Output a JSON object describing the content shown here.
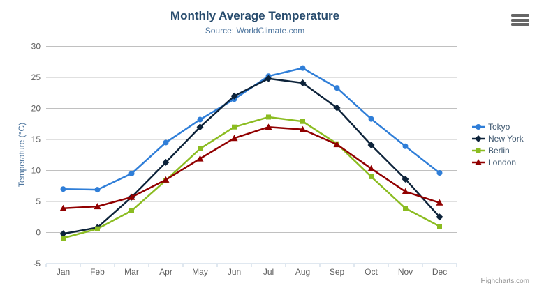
{
  "credits": {
    "label": "Highcharts.com"
  },
  "chart_data": {
    "type": "line",
    "title": "Monthly Average Temperature",
    "subtitle": "Source: WorldClimate.com",
    "xlabel": "",
    "ylabel": "Temperature (°C)",
    "categories": [
      "Jan",
      "Feb",
      "Mar",
      "Apr",
      "May",
      "Jun",
      "Jul",
      "Aug",
      "Sep",
      "Oct",
      "Nov",
      "Dec"
    ],
    "series": [
      {
        "name": "Tokyo",
        "color": "#2f7ed8",
        "marker": "circle",
        "values": [
          7.0,
          6.9,
          9.5,
          14.5,
          18.2,
          21.5,
          25.2,
          26.5,
          23.3,
          18.3,
          13.9,
          9.6
        ]
      },
      {
        "name": "New York",
        "color": "#0d233a",
        "marker": "diamond",
        "values": [
          -0.2,
          0.8,
          5.7,
          11.3,
          17.0,
          22.0,
          24.8,
          24.1,
          20.1,
          14.1,
          8.6,
          2.5
        ]
      },
      {
        "name": "Berlin",
        "color": "#8bbc21",
        "marker": "square",
        "values": [
          -0.9,
          0.6,
          3.5,
          8.4,
          13.5,
          17.0,
          18.6,
          17.9,
          14.3,
          9.0,
          3.9,
          1.0
        ]
      },
      {
        "name": "London",
        "color": "#910000",
        "marker": "triangle",
        "values": [
          3.9,
          4.2,
          5.7,
          8.5,
          11.9,
          15.2,
          17.0,
          16.6,
          14.2,
          10.3,
          6.6,
          4.8
        ]
      }
    ],
    "ylim": [
      -5,
      30
    ],
    "ytick_step": 5,
    "grid": true,
    "grid_color": "#C0C0C0",
    "axis_line_color": "#C0D0E0",
    "axis_label_color": "#606060",
    "legend_position": "right"
  }
}
